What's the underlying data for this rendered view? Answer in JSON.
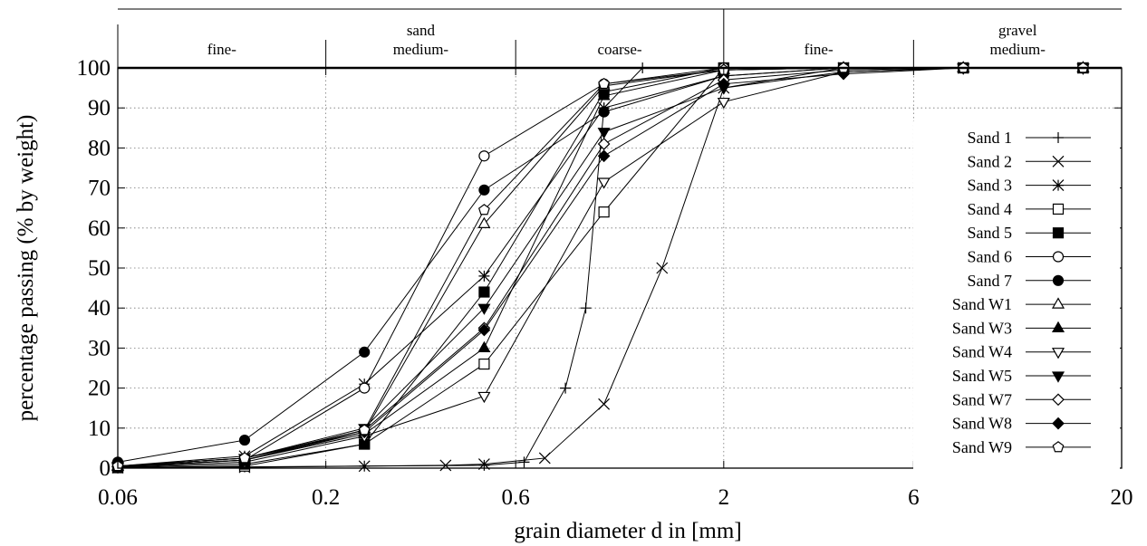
{
  "chart_data": {
    "type": "line",
    "xscale": "log",
    "xlim": [
      0.06,
      20
    ],
    "ylim": [
      0,
      100
    ],
    "xlabel": "grain diameter d in [mm]",
    "ylabel": "percentage passing (% by weight)",
    "xticks": [
      0.06,
      0.2,
      0.6,
      2,
      6,
      20
    ],
    "xtick_labels": [
      "0.06",
      "0.2",
      "0.6",
      "2",
      "6",
      "20"
    ],
    "yticks": [
      0,
      10,
      20,
      30,
      40,
      50,
      60,
      70,
      80,
      90,
      100
    ],
    "yticks_labels": [
      "0",
      "10",
      "20",
      "30",
      "40",
      "50",
      "60",
      "70",
      "80",
      "90",
      "100"
    ],
    "grid": true,
    "legend_position": "right",
    "regions": [
      {
        "group": "",
        "label": "fine-"
      },
      {
        "group": "sand",
        "label": "medium-"
      },
      {
        "group": "",
        "label": "coarse-"
      },
      {
        "group": "",
        "label": "fine-"
      },
      {
        "group": "gravel",
        "label": "medium-"
      }
    ],
    "series": [
      {
        "name": "Sand 1",
        "marker": "plus",
        "x": [
          0.06,
          0.125,
          0.25,
          0.5,
          0.63,
          0.8,
          0.9,
          1.0,
          1.25,
          2.0,
          4.0,
          8.0,
          16.0
        ],
        "y": [
          0.2,
          0.3,
          0.5,
          0.7,
          1.5,
          20,
          40,
          90,
          100,
          100,
          100,
          100,
          100
        ]
      },
      {
        "name": "Sand 2",
        "marker": "x",
        "x": [
          0.06,
          0.125,
          0.25,
          0.4,
          0.5,
          0.71,
          1.0,
          1.4,
          2.0,
          4.0,
          8.0,
          16.0
        ],
        "y": [
          0.1,
          0.2,
          0.5,
          0.7,
          1.0,
          2.5,
          16,
          50,
          95,
          100,
          100,
          100
        ]
      },
      {
        "name": "Sand 3",
        "marker": "asterisk",
        "x": [
          0.06,
          0.125,
          0.25,
          0.5,
          1.0,
          2.0,
          4.0,
          8.0,
          16.0
        ],
        "y": [
          0.5,
          3,
          21,
          48,
          90,
          98,
          100,
          100,
          100
        ]
      },
      {
        "name": "Sand 4",
        "marker": "square-open",
        "x": [
          0.06,
          0.125,
          0.25,
          0.5,
          1.0,
          2.0,
          4.0,
          8.0,
          16.0
        ],
        "y": [
          0.1,
          0.5,
          6,
          26,
          64,
          100,
          100,
          100,
          100
        ]
      },
      {
        "name": "Sand 5",
        "marker": "square-filled",
        "x": [
          0.06,
          0.125,
          0.25,
          0.5,
          1.0,
          2.0,
          4.0,
          8.0,
          16.0
        ],
        "y": [
          0.2,
          1,
          6,
          44,
          94,
          100,
          100,
          100,
          100
        ]
      },
      {
        "name": "Sand 6",
        "marker": "circle-open",
        "x": [
          0.06,
          0.125,
          0.25,
          0.5,
          1.0,
          2.0,
          4.0,
          8.0,
          16.0
        ],
        "y": [
          0.3,
          2,
          20,
          78,
          96,
          100,
          100,
          100,
          100
        ]
      },
      {
        "name": "Sand 7",
        "marker": "circle-filled",
        "x": [
          0.06,
          0.125,
          0.25,
          0.5,
          1.0,
          2.0,
          4.0,
          8.0,
          16.0
        ],
        "y": [
          1.5,
          7,
          29,
          69.5,
          89,
          98,
          100,
          100,
          100
        ]
      },
      {
        "name": "Sand W1",
        "marker": "triangle-up-open",
        "x": [
          0.06,
          0.125,
          0.25,
          0.5,
          1.0,
          2.0,
          4.0,
          8.0,
          16.0
        ],
        "y": [
          0.5,
          2.5,
          9,
          61,
          95.5,
          99.5,
          100,
          100,
          100
        ]
      },
      {
        "name": "Sand W3",
        "marker": "triangle-up-filled",
        "x": [
          0.06,
          0.125,
          0.25,
          0.5,
          1.0,
          2.0,
          4.0,
          8.0,
          16.0
        ],
        "y": [
          0.4,
          2,
          8.5,
          30,
          93,
          99.5,
          100,
          100,
          100
        ]
      },
      {
        "name": "Sand W4",
        "marker": "triangle-down-open",
        "x": [
          0.06,
          0.125,
          0.25,
          0.5,
          1.0,
          2.0,
          4.0,
          8.0,
          16.0
        ],
        "y": [
          0.3,
          1.5,
          8,
          18,
          71.5,
          91.5,
          99,
          100,
          100
        ]
      },
      {
        "name": "Sand W5",
        "marker": "triangle-down-filled",
        "x": [
          0.06,
          0.125,
          0.25,
          0.5,
          1.0,
          2.0,
          4.0,
          8.0,
          16.0
        ],
        "y": [
          0.5,
          2.5,
          10,
          40,
          84,
          95,
          99,
          100,
          100
        ]
      },
      {
        "name": "Sand W7",
        "marker": "diamond-open",
        "x": [
          0.06,
          0.125,
          0.25,
          0.5,
          1.0,
          2.0,
          4.0,
          8.0,
          16.0
        ],
        "y": [
          0.4,
          2,
          9.5,
          35,
          81,
          97,
          99.5,
          100,
          100
        ]
      },
      {
        "name": "Sand W8",
        "marker": "diamond-filled",
        "x": [
          0.06,
          0.125,
          0.25,
          0.5,
          1.0,
          2.0,
          4.0,
          8.0,
          16.0
        ],
        "y": [
          0.4,
          2,
          9,
          34.5,
          78,
          96,
          98.5,
          100,
          100
        ]
      },
      {
        "name": "Sand W9",
        "marker": "pentagon-open",
        "x": [
          0.06,
          0.125,
          0.25,
          0.5,
          1.0,
          2.0,
          4.0,
          8.0,
          16.0
        ],
        "y": [
          0.5,
          2.5,
          9.5,
          64.5,
          96,
          99.5,
          100,
          100,
          100
        ]
      }
    ]
  }
}
